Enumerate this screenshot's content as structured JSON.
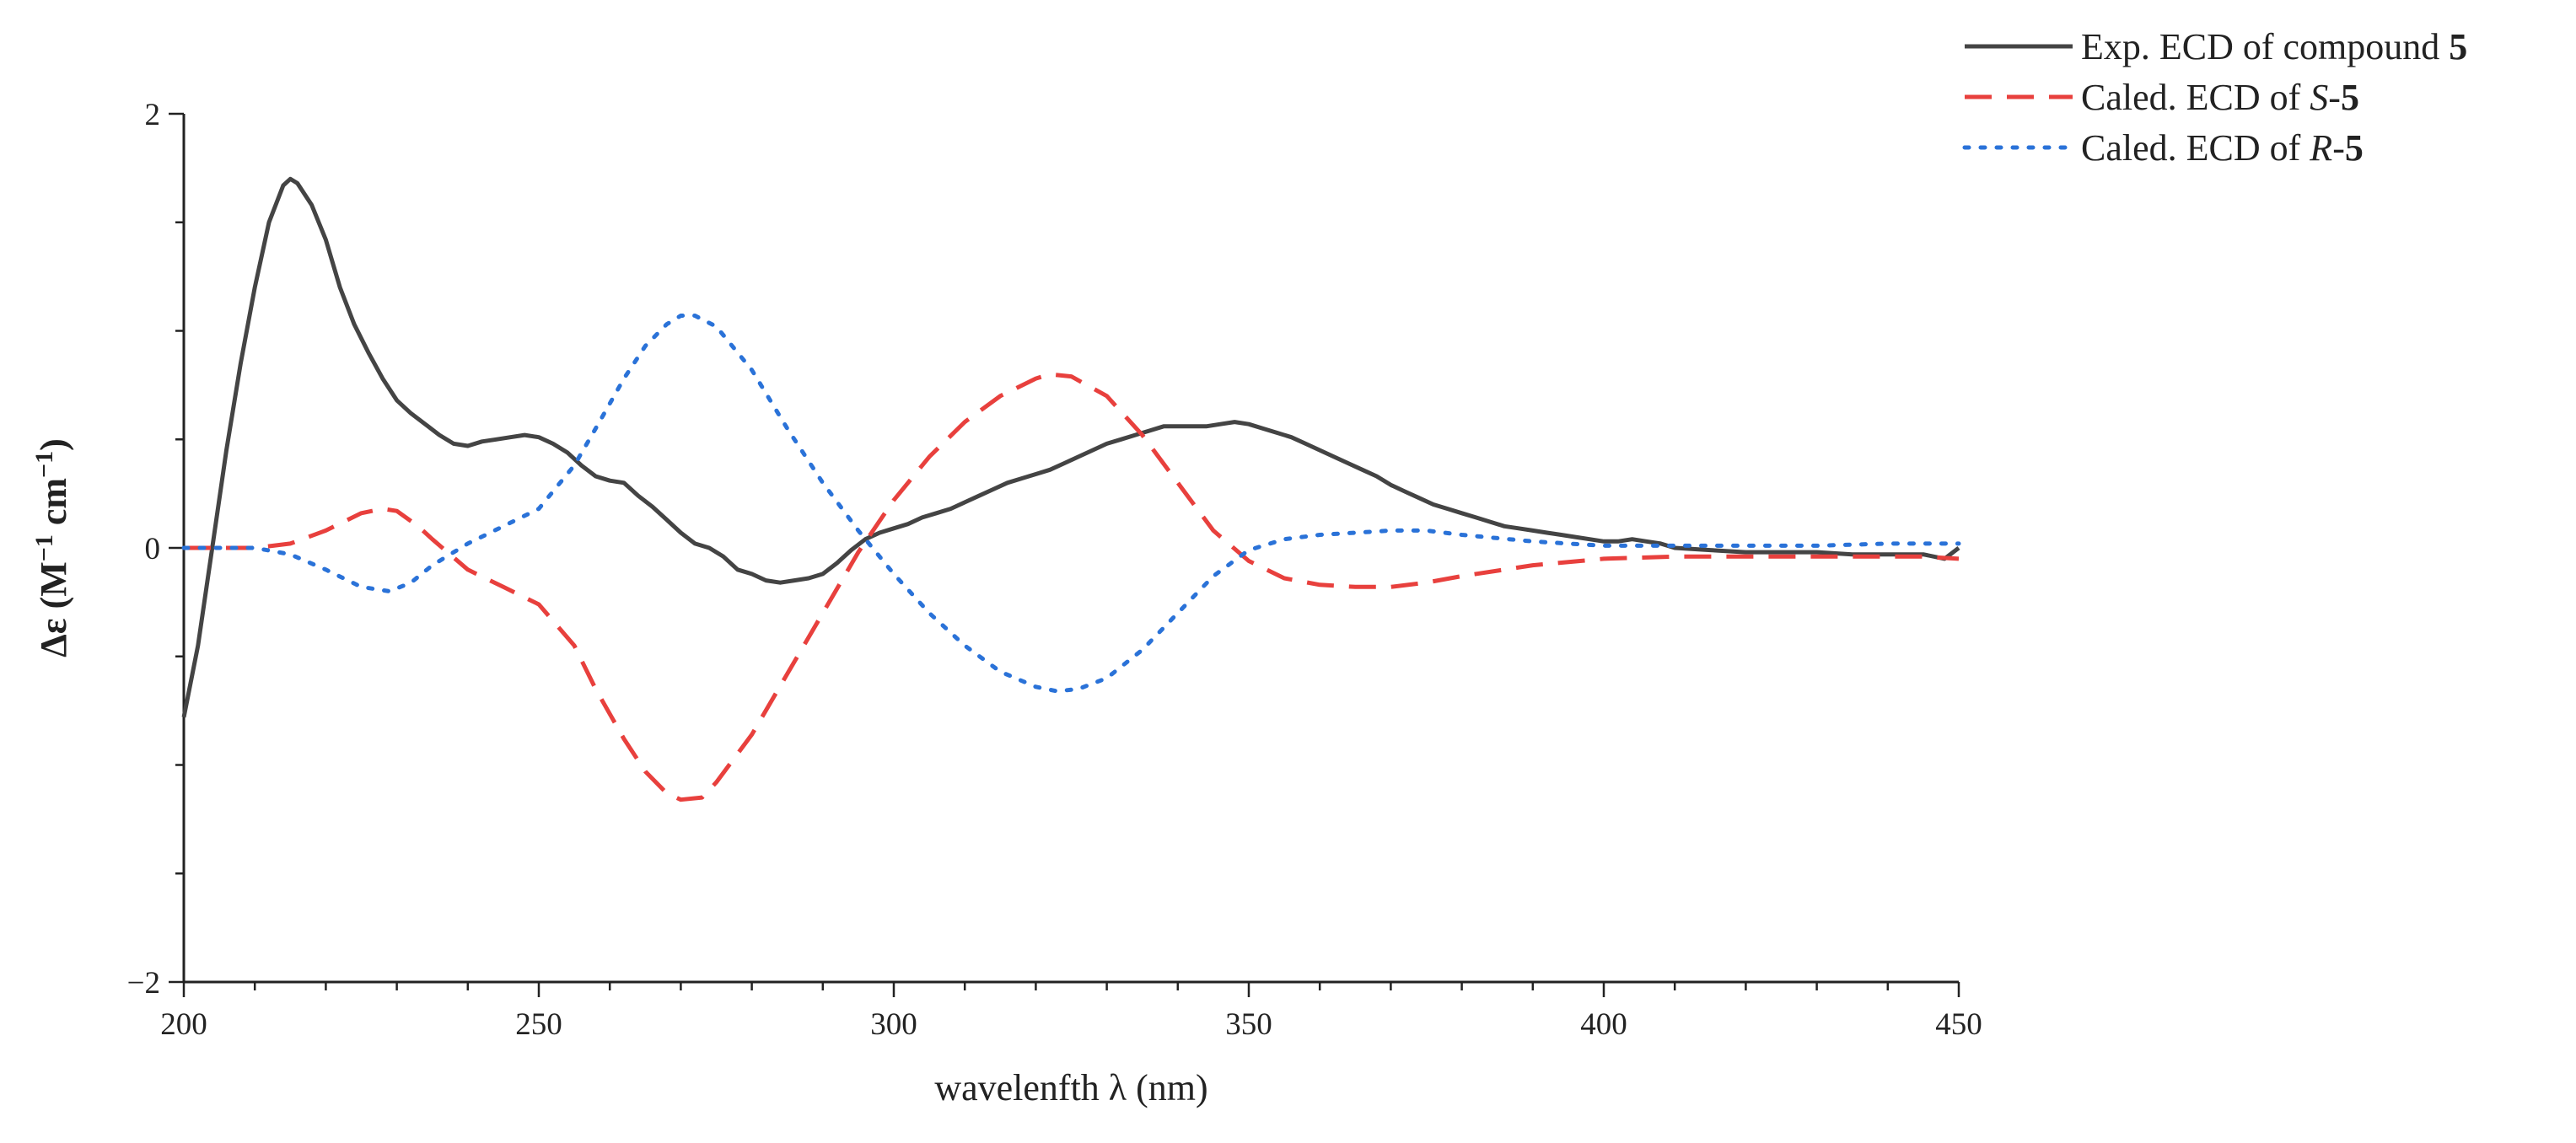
{
  "chart_data": {
    "type": "line",
    "xlabel": "wavelenfth λ (nm)",
    "ylabel": {
      "prefix": "Δε (M",
      "sup1": "−1",
      "middle": " cm",
      "sup2": "−1",
      "suffix": ")"
    },
    "xlim": [
      200,
      450
    ],
    "ylim": [
      -2,
      2
    ],
    "x_ticks": [
      200,
      250,
      300,
      350,
      400,
      450
    ],
    "x_tick_labels": [
      "200",
      "250",
      "300",
      "350",
      "400",
      "450"
    ],
    "y_ticks": [
      -2,
      0,
      2
    ],
    "y_tick_labels": [
      "−2",
      "0",
      "2"
    ],
    "legend_position": "top-right",
    "series": [
      {
        "name": "Exp. ECD of compound 5",
        "legend_parts": [
          {
            "text": "Exp. ECD of compound ",
            "style": "normal"
          },
          {
            "text": "5",
            "style": "bold"
          }
        ],
        "color": "#444444",
        "dash": "solid",
        "x": [
          200,
          202,
          204,
          206,
          208,
          210,
          212,
          214,
          215,
          216,
          218,
          220,
          222,
          224,
          226,
          228,
          230,
          232,
          234,
          236,
          238,
          240,
          242,
          244,
          246,
          248,
          250,
          252,
          254,
          256,
          258,
          260,
          262,
          264,
          266,
          268,
          270,
          272,
          274,
          276,
          278,
          280,
          282,
          284,
          286,
          288,
          290,
          292,
          294,
          296,
          298,
          300,
          302,
          304,
          306,
          308,
          310,
          312,
          314,
          316,
          318,
          320,
          322,
          324,
          326,
          328,
          330,
          332,
          334,
          336,
          338,
          340,
          342,
          344,
          346,
          348,
          350,
          352,
          354,
          356,
          358,
          360,
          362,
          364,
          366,
          368,
          370,
          372,
          374,
          376,
          378,
          380,
          382,
          384,
          386,
          388,
          390,
          392,
          394,
          396,
          398,
          400,
          402,
          404,
          406,
          408,
          410,
          415,
          420,
          425,
          430,
          435,
          440,
          445,
          448,
          450
        ],
        "y": [
          -0.78,
          -0.45,
          0.0,
          0.45,
          0.85,
          1.2,
          1.5,
          1.67,
          1.7,
          1.68,
          1.58,
          1.42,
          1.2,
          1.03,
          0.9,
          0.78,
          0.68,
          0.62,
          0.57,
          0.52,
          0.48,
          0.47,
          0.49,
          0.5,
          0.51,
          0.52,
          0.51,
          0.48,
          0.44,
          0.38,
          0.33,
          0.31,
          0.3,
          0.24,
          0.19,
          0.13,
          0.07,
          0.02,
          0.0,
          -0.04,
          -0.1,
          -0.12,
          -0.15,
          -0.16,
          -0.15,
          -0.14,
          -0.12,
          -0.07,
          -0.01,
          0.04,
          0.07,
          0.09,
          0.11,
          0.14,
          0.16,
          0.18,
          0.21,
          0.24,
          0.27,
          0.3,
          0.32,
          0.34,
          0.36,
          0.39,
          0.42,
          0.45,
          0.48,
          0.5,
          0.52,
          0.54,
          0.56,
          0.56,
          0.56,
          0.56,
          0.57,
          0.58,
          0.57,
          0.55,
          0.53,
          0.51,
          0.48,
          0.45,
          0.42,
          0.39,
          0.36,
          0.33,
          0.29,
          0.26,
          0.23,
          0.2,
          0.18,
          0.16,
          0.14,
          0.12,
          0.1,
          0.09,
          0.08,
          0.07,
          0.06,
          0.05,
          0.04,
          0.03,
          0.03,
          0.04,
          0.03,
          0.02,
          0.0,
          -0.01,
          -0.02,
          -0.02,
          -0.02,
          -0.03,
          -0.03,
          -0.03,
          -0.05,
          0.0
        ]
      },
      {
        "name": "Caled. ECD of S-5",
        "legend_parts": [
          {
            "text": "Caled. ECD of ",
            "style": "normal"
          },
          {
            "text": "S",
            "style": "italic"
          },
          {
            "text": "-",
            "style": "normal"
          },
          {
            "text": "5",
            "style": "bold"
          }
        ],
        "color": "#e8403d",
        "dash": "dashed",
        "x": [
          200,
          205,
          210,
          215,
          220,
          225,
          228,
          230,
          233,
          235,
          240,
          245,
          250,
          255,
          258,
          262,
          265,
          268,
          270,
          273,
          275,
          280,
          285,
          290,
          295,
          300,
          305,
          310,
          315,
          320,
          322,
          325,
          330,
          335,
          340,
          345,
          350,
          355,
          360,
          365,
          368,
          370,
          375,
          380,
          390,
          400,
          410,
          420,
          430,
          440,
          445,
          450
        ],
        "y": [
          0.0,
          0.0,
          0.0,
          0.02,
          0.08,
          0.16,
          0.18,
          0.17,
          0.1,
          0.04,
          -0.1,
          -0.18,
          -0.26,
          -0.45,
          -0.65,
          -0.88,
          -1.03,
          -1.13,
          -1.16,
          -1.15,
          -1.08,
          -0.86,
          -0.58,
          -0.3,
          -0.02,
          0.22,
          0.42,
          0.58,
          0.7,
          0.78,
          0.8,
          0.79,
          0.7,
          0.52,
          0.3,
          0.08,
          -0.06,
          -0.14,
          -0.17,
          -0.18,
          -0.18,
          -0.18,
          -0.16,
          -0.13,
          -0.08,
          -0.05,
          -0.04,
          -0.04,
          -0.04,
          -0.04,
          -0.04,
          -0.05
        ]
      },
      {
        "name": "Caled. ECD of R-5",
        "legend_parts": [
          {
            "text": "Caled. ECD of ",
            "style": "normal"
          },
          {
            "text": "R",
            "style": "italic"
          },
          {
            "text": "-",
            "style": "normal"
          },
          {
            "text": "5",
            "style": "bold"
          }
        ],
        "color": "#2a72d8",
        "dash": "dotted",
        "x": [
          200,
          205,
          210,
          215,
          220,
          225,
          229,
          232,
          235,
          240,
          245,
          250,
          255,
          258,
          262,
          265,
          268,
          270,
          272,
          275,
          280,
          285,
          290,
          295,
          300,
          305,
          310,
          315,
          320,
          323,
          326,
          330,
          335,
          340,
          345,
          350,
          355,
          360,
          365,
          370,
          375,
          380,
          390,
          400,
          410,
          420,
          430,
          440,
          450
        ],
        "y": [
          0.0,
          0.0,
          0.0,
          -0.03,
          -0.1,
          -0.18,
          -0.2,
          -0.16,
          -0.08,
          0.02,
          0.1,
          0.18,
          0.38,
          0.55,
          0.78,
          0.93,
          1.03,
          1.07,
          1.07,
          1.02,
          0.82,
          0.55,
          0.3,
          0.08,
          -0.12,
          -0.3,
          -0.45,
          -0.57,
          -0.64,
          -0.66,
          -0.65,
          -0.6,
          -0.47,
          -0.3,
          -0.13,
          -0.01,
          0.04,
          0.06,
          0.07,
          0.08,
          0.08,
          0.06,
          0.03,
          0.01,
          0.01,
          0.01,
          0.01,
          0.02,
          0.02
        ]
      }
    ]
  }
}
